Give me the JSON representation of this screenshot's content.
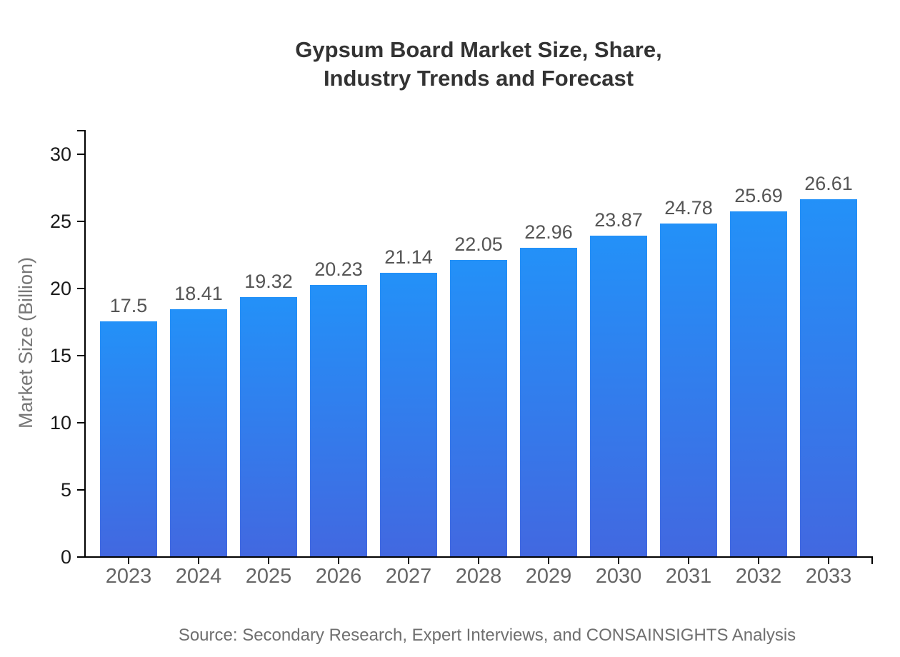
{
  "title": {
    "line1": "Gypsum Board Market Size, Share,",
    "line2": "Industry Trends and Forecast"
  },
  "source": "Source: Secondary Research, Expert Interviews, and CONSAINSIGHTS Analysis",
  "chart_data": {
    "type": "bar",
    "title": "Gypsum Board Market Size, Share, Industry Trends and Forecast",
    "categories": [
      "2023",
      "2024",
      "2025",
      "2026",
      "2027",
      "2028",
      "2029",
      "2030",
      "2031",
      "2032",
      "2033"
    ],
    "values": [
      17.5,
      18.41,
      19.32,
      20.23,
      21.14,
      22.05,
      22.96,
      23.87,
      24.78,
      25.69,
      26.61
    ],
    "xlabel": "",
    "ylabel": "Market Size (Billion)",
    "ylim": [
      0,
      32
    ],
    "yticks": [
      0,
      5,
      10,
      15,
      20,
      25,
      30
    ],
    "grid": false,
    "legend": false,
    "value_labels_shown": true
  },
  "colors": {
    "bar_gradient_top": "#2391F8",
    "bar_gradient_bottom": "#4268E0",
    "axis": "#000000",
    "title_text": "#333333",
    "ytick_text": "#1a1a1a",
    "xtick_text": "#666666",
    "value_text": "#555555",
    "ylabel_text": "#777777",
    "source_text": "#6f6f6f"
  }
}
